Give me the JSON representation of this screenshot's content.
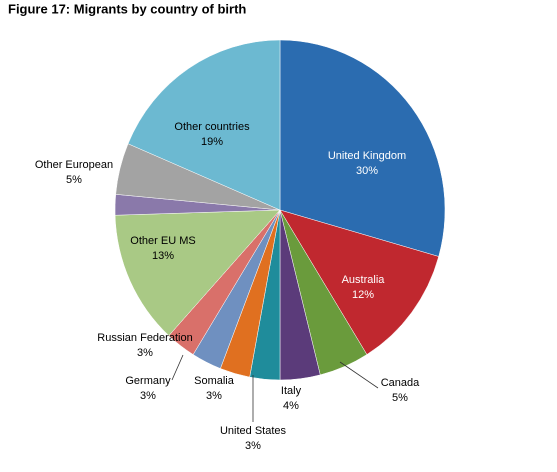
{
  "chart_data": {
    "type": "pie",
    "title": "Figure 17: Migrants by country of birth",
    "categories": [
      "United Kingdom",
      "Australia",
      "Canada",
      "Italy",
      "United States",
      "Somalia",
      "Germany",
      "Russian Federation",
      "Other EU MS",
      null,
      "Other European",
      "Other countries"
    ],
    "values": [
      30,
      12,
      5,
      4,
      3,
      3,
      3,
      3,
      13,
      2,
      5,
      19
    ],
    "value_labels": [
      "30%",
      "12%",
      "5%",
      "4%",
      "3%",
      "3%",
      "3%",
      "3%",
      "13%",
      null,
      "5%",
      "19%"
    ],
    "colors": [
      "#2b6cb0",
      "#c0282f",
      "#6a9b3c",
      "#5b3b7a",
      "#1f8c9b",
      "#e07020",
      "#6f90c0",
      "#d9706a",
      "#a9c985",
      "#8a79aa",
      "#a3a3a3",
      "#6cb9d1"
    ]
  }
}
